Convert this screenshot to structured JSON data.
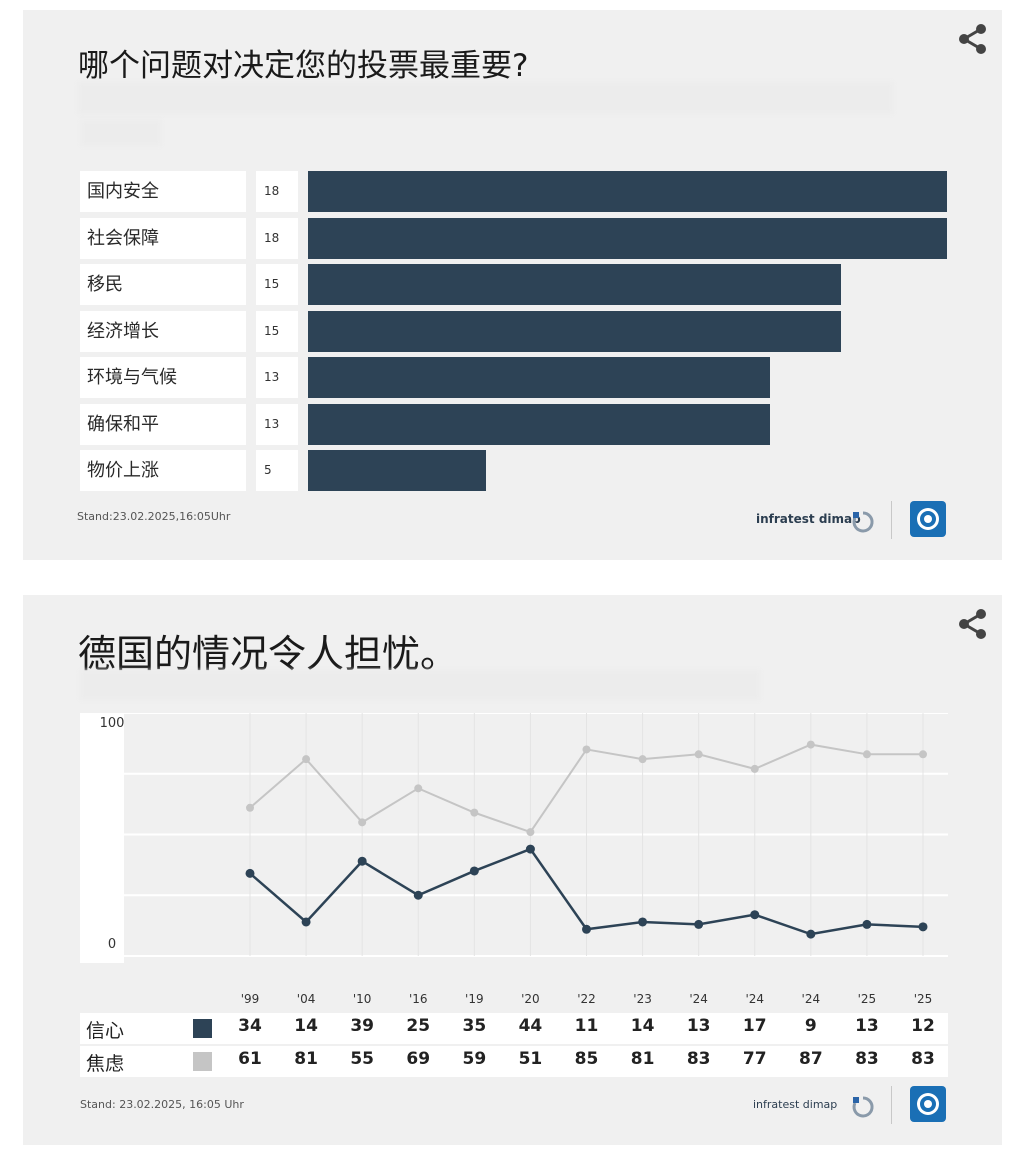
{
  "card1": {
    "title": "哪个问题对决定您的投票最重要?",
    "stand": "Stand:23.02.2025,16:05Uhr",
    "brand": "infratest dimap"
  },
  "card2": {
    "title": "德国的情况令人担忧。",
    "stand": "Stand: 23.02.2025, 16:05 Uhr",
    "brand": "infratest dimap"
  },
  "icons": {
    "share": "share-icon",
    "logo": "tagesschau-logo-icon",
    "infratest": "infratest-logo-icon"
  },
  "colors": {
    "dark": "#2d4356",
    "light": "#c5c5c5",
    "card": "#f0f0f0"
  },
  "chart_data": [
    {
      "type": "bar",
      "orientation": "horizontal",
      "title": "哪个问题对决定您的投票最重要?",
      "categories": [
        "国内安全",
        "社会保障",
        "移民",
        "经济增长",
        "环境与气候",
        "确保和平",
        "物价上涨"
      ],
      "values": [
        18,
        18,
        15,
        15,
        13,
        13,
        5
      ],
      "xlim": [
        0,
        18
      ]
    },
    {
      "type": "line",
      "title": "德国的情况令人担忧。",
      "x": [
        "'99",
        "'04",
        "'10",
        "'16",
        "'19",
        "'20",
        "'22",
        "'23",
        "'24",
        "'24",
        "'24",
        "'25",
        "'25"
      ],
      "series": [
        {
          "name": "信心",
          "color": "#2d4356",
          "values": [
            34,
            14,
            39,
            25,
            35,
            44,
            11,
            14,
            13,
            17,
            9,
            13,
            12
          ]
        },
        {
          "name": "焦虑",
          "color": "#c5c5c5",
          "values": [
            61,
            81,
            55,
            69,
            59,
            51,
            85,
            81,
            83,
            77,
            87,
            83,
            83
          ]
        }
      ],
      "ylim": [
        0,
        100
      ],
      "yticks": [
        "100",
        "0"
      ],
      "grid": true
    }
  ]
}
